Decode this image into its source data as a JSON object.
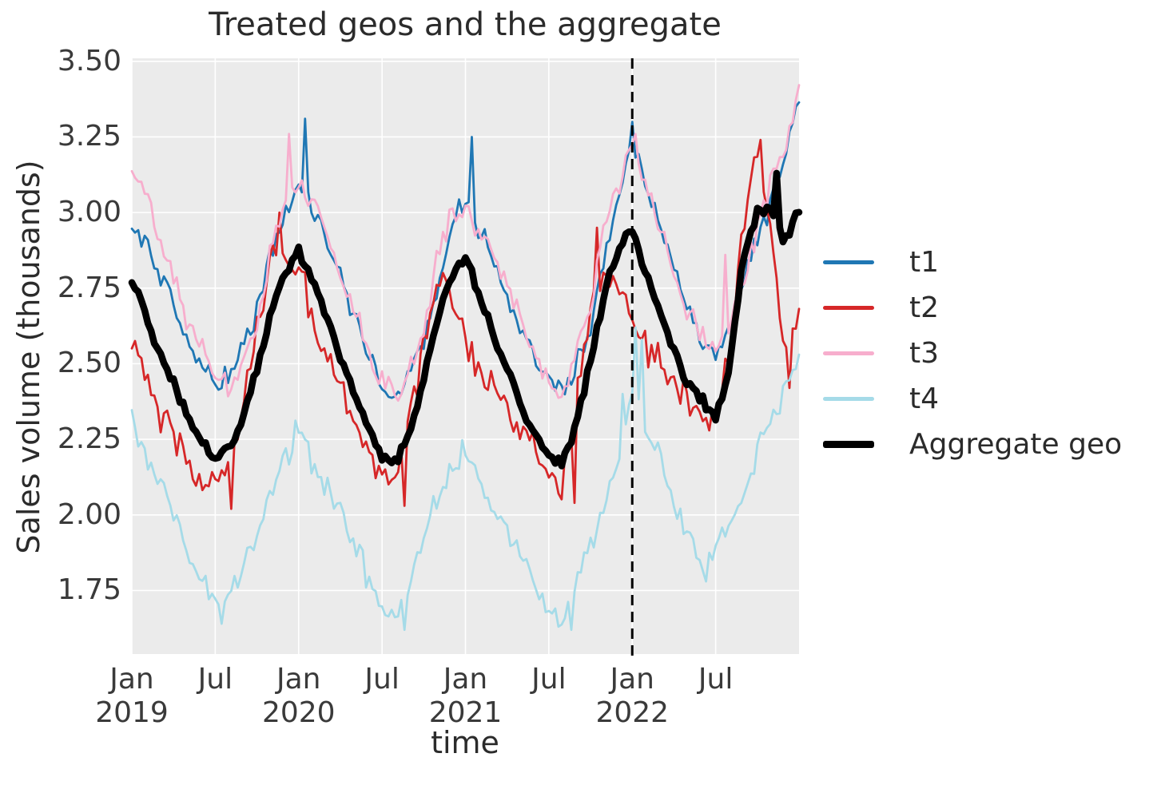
{
  "chart_data": {
    "type": "line",
    "title": "Treated geos and the aggregate",
    "xlabel": "time",
    "ylabel": "Sales volume (thousands)",
    "ylim": [
      1.54,
      3.51
    ],
    "x_months_total": 48,
    "grid": true,
    "background_color": "#ebebeb",
    "gridline_color": "#ffffff",
    "text_color": "#2b2b2b",
    "yticks": [
      {
        "v": 3.5,
        "label": "3.50"
      },
      {
        "v": 3.25,
        "label": "3.25"
      },
      {
        "v": 3.0,
        "label": "3.00"
      },
      {
        "v": 2.75,
        "label": "2.75"
      },
      {
        "v": 2.5,
        "label": "2.50"
      },
      {
        "v": 2.25,
        "label": "2.25"
      },
      {
        "v": 2.0,
        "label": "2.00"
      },
      {
        "v": 1.75,
        "label": "1.75"
      }
    ],
    "xticks": [
      {
        "t": 0,
        "line1": "Jan",
        "line2": "2019"
      },
      {
        "t": 6,
        "line1": "Jul",
        "line2": ""
      },
      {
        "t": 12,
        "line1": "Jan",
        "line2": "2020"
      },
      {
        "t": 18,
        "line1": "Jul",
        "line2": ""
      },
      {
        "t": 24,
        "line1": "Jan",
        "line2": "2021"
      },
      {
        "t": 30,
        "line1": "Jul",
        "line2": ""
      },
      {
        "t": 36,
        "line1": "Jan",
        "line2": "2022"
      },
      {
        "t": 42,
        "line1": "Jul",
        "line2": ""
      }
    ],
    "treatment_line": {
      "t": 36,
      "color": "#000000",
      "dash": [
        13,
        8
      ],
      "width": 3,
      "date": "Jan 2022"
    },
    "sampling": {
      "points_per_series": 209,
      "month_start": "2019-01",
      "month_end": "2022-12"
    },
    "series": [
      {
        "name": "t1",
        "color": "#1f77b4",
        "width": 2.8,
        "noise": 0.045,
        "seed": 11,
        "monthly_values": [
          2.97,
          2.9,
          2.8,
          2.7,
          2.58,
          2.48,
          2.44,
          2.46,
          2.54,
          2.68,
          2.85,
          3.0,
          3.1,
          3.02,
          2.92,
          2.78,
          2.65,
          2.52,
          2.42,
          2.4,
          2.46,
          2.58,
          2.76,
          2.95,
          3.05,
          2.95,
          2.85,
          2.72,
          2.62,
          2.52,
          2.45,
          2.42,
          2.5,
          2.62,
          2.85,
          3.05,
          3.2,
          3.1,
          2.98,
          2.82,
          2.68,
          2.58,
          2.52,
          2.62,
          2.78,
          2.92,
          3.02,
          3.18,
          3.4
        ],
        "extremes": [
          [
            12.36,
            3.31
          ],
          [
            24.5,
            3.25
          ],
          [
            36.1,
            3.3
          ]
        ]
      },
      {
        "name": "t2",
        "color": "#d62728",
        "width": 2.8,
        "noise": 0.07,
        "seed": 22,
        "monthly_values": [
          2.6,
          2.45,
          2.33,
          2.26,
          2.18,
          2.12,
          2.08,
          2.16,
          2.36,
          2.6,
          2.85,
          2.85,
          2.82,
          2.65,
          2.55,
          2.42,
          2.32,
          2.22,
          2.12,
          2.12,
          2.32,
          2.55,
          2.78,
          2.7,
          2.58,
          2.48,
          2.42,
          2.35,
          2.28,
          2.2,
          2.12,
          2.1,
          2.38,
          2.66,
          2.8,
          2.7,
          2.65,
          2.55,
          2.5,
          2.44,
          2.38,
          2.32,
          2.28,
          2.55,
          2.95,
          3.18,
          2.95,
          2.5,
          2.68
        ],
        "extremes": [
          [
            7.2,
            2.02
          ],
          [
            10.7,
            3.0
          ],
          [
            19.6,
            2.03
          ],
          [
            31.8,
            2.04
          ],
          [
            33.5,
            2.95
          ],
          [
            45.3,
            3.24
          ],
          [
            47.3,
            2.42
          ]
        ]
      },
      {
        "name": "t3",
        "color": "#f7aecd",
        "width": 2.8,
        "noise": 0.05,
        "seed": 33,
        "monthly_values": [
          3.12,
          3.05,
          2.92,
          2.78,
          2.65,
          2.55,
          2.46,
          2.42,
          2.5,
          2.65,
          2.88,
          3.05,
          3.1,
          3.05,
          2.95,
          2.8,
          2.68,
          2.54,
          2.44,
          2.4,
          2.48,
          2.62,
          2.85,
          3.0,
          3.02,
          2.95,
          2.88,
          2.76,
          2.64,
          2.52,
          2.45,
          2.4,
          2.52,
          2.68,
          2.95,
          3.08,
          3.2,
          3.08,
          2.95,
          2.8,
          2.68,
          2.6,
          2.55,
          2.62,
          2.78,
          2.95,
          3.1,
          3.22,
          3.42
        ],
        "extremes": [
          [
            11.3,
            3.26
          ],
          [
            36.2,
            3.26
          ],
          [
            42.6,
            2.86
          ]
        ]
      },
      {
        "name": "t4",
        "color": "#a5dbe8",
        "width": 2.8,
        "noise": 0.06,
        "seed": 44,
        "monthly_values": [
          2.3,
          2.2,
          2.1,
          2.0,
          1.9,
          1.8,
          1.72,
          1.72,
          1.82,
          1.95,
          2.08,
          2.2,
          2.28,
          2.18,
          2.1,
          2.0,
          1.92,
          1.8,
          1.7,
          1.67,
          1.78,
          1.92,
          2.05,
          2.15,
          2.2,
          2.12,
          2.02,
          1.95,
          1.86,
          1.76,
          1.68,
          1.65,
          1.8,
          1.9,
          2.0,
          2.18,
          2.45,
          2.3,
          2.18,
          2.05,
          1.95,
          1.84,
          1.88,
          1.96,
          2.08,
          2.2,
          2.32,
          2.42,
          2.52
        ],
        "extremes": [
          [
            6.5,
            1.64
          ],
          [
            19.5,
            1.62
          ],
          [
            31.6,
            1.62
          ],
          [
            35.4,
            2.4
          ],
          [
            36.2,
            2.62
          ],
          [
            36.7,
            2.58
          ],
          [
            41.3,
            1.78
          ]
        ]
      },
      {
        "name": "Aggregate geo",
        "color": "#000000",
        "width": 8.5,
        "noise": 0.022,
        "seed": 55,
        "monthly_values": [
          2.78,
          2.66,
          2.54,
          2.44,
          2.33,
          2.24,
          2.19,
          2.21,
          2.32,
          2.49,
          2.67,
          2.8,
          2.88,
          2.78,
          2.66,
          2.52,
          2.4,
          2.28,
          2.19,
          2.17,
          2.28,
          2.45,
          2.65,
          2.8,
          2.85,
          2.73,
          2.6,
          2.48,
          2.37,
          2.26,
          2.19,
          2.17,
          2.31,
          2.5,
          2.73,
          2.88,
          2.95,
          2.8,
          2.67,
          2.54,
          2.44,
          2.38,
          2.32,
          2.5,
          2.85,
          3.0,
          3.02,
          2.9,
          3.02
        ],
        "extremes": [
          [
            46.3,
            3.13
          ]
        ]
      }
    ],
    "legend": {
      "position": "right-outside",
      "entries": [
        "t1",
        "t2",
        "t3",
        "t4",
        "Aggregate geo"
      ]
    }
  }
}
